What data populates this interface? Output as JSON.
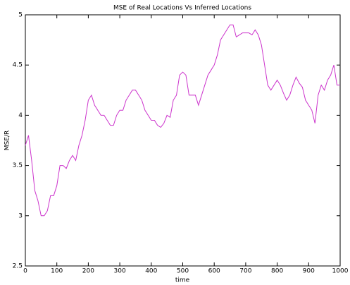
{
  "chart_data": {
    "type": "line",
    "title": "MSE of Real Locations Vs Inferred Locations",
    "xlabel": "time",
    "ylabel": "MSE/R",
    "x": [
      0,
      10,
      20,
      30,
      40,
      50,
      60,
      70,
      80,
      90,
      100,
      110,
      120,
      130,
      140,
      150,
      160,
      170,
      180,
      190,
      200,
      210,
      220,
      230,
      240,
      250,
      260,
      270,
      280,
      290,
      300,
      310,
      320,
      330,
      340,
      350,
      360,
      370,
      380,
      390,
      400,
      410,
      420,
      430,
      440,
      450,
      460,
      470,
      480,
      490,
      500,
      510,
      520,
      530,
      540,
      550,
      560,
      570,
      580,
      590,
      600,
      610,
      620,
      630,
      640,
      650,
      660,
      670,
      680,
      690,
      700,
      710,
      720,
      730,
      740,
      750,
      760,
      770,
      780,
      790,
      800,
      810,
      820,
      830,
      840,
      850,
      860,
      870,
      880,
      890,
      900,
      910,
      920,
      930,
      940,
      950,
      960,
      970,
      980,
      990,
      1000
    ],
    "series": [
      {
        "name": "MSE",
        "color": "#cc33cc",
        "values": [
          3.7,
          3.8,
          3.55,
          3.25,
          3.15,
          3.0,
          3.0,
          3.05,
          3.2,
          3.2,
          3.3,
          3.5,
          3.5,
          3.47,
          3.55,
          3.6,
          3.55,
          3.7,
          3.8,
          3.95,
          4.15,
          4.2,
          4.1,
          4.05,
          4.0,
          4.0,
          3.95,
          3.9,
          3.9,
          4.0,
          4.05,
          4.05,
          4.15,
          4.2,
          4.25,
          4.25,
          4.2,
          4.15,
          4.05,
          4.0,
          3.95,
          3.95,
          3.9,
          3.88,
          3.92,
          4.0,
          3.98,
          4.15,
          4.2,
          4.4,
          4.43,
          4.4,
          4.2,
          4.2,
          4.2,
          4.1,
          4.2,
          4.3,
          4.4,
          4.45,
          4.5,
          4.6,
          4.75,
          4.8,
          4.85,
          4.9,
          4.9,
          4.78,
          4.8,
          4.82,
          4.82,
          4.82,
          4.8,
          4.85,
          4.8,
          4.7,
          4.5,
          4.3,
          4.25,
          4.3,
          4.35,
          4.3,
          4.22,
          4.15,
          4.2,
          4.3,
          4.38,
          4.32,
          4.28,
          4.15,
          4.1,
          4.05,
          3.92,
          4.2,
          4.3,
          4.25,
          4.35,
          4.4,
          4.5,
          4.3,
          4.3
        ]
      }
    ],
    "xlim": [
      0,
      1000
    ],
    "xticks": [
      0,
      100,
      200,
      300,
      400,
      500,
      600,
      700,
      800,
      900,
      1000
    ],
    "ylim": [
      2.5,
      5
    ],
    "yticks": [
      2.5,
      3,
      3.5,
      4,
      4.5,
      5
    ]
  }
}
